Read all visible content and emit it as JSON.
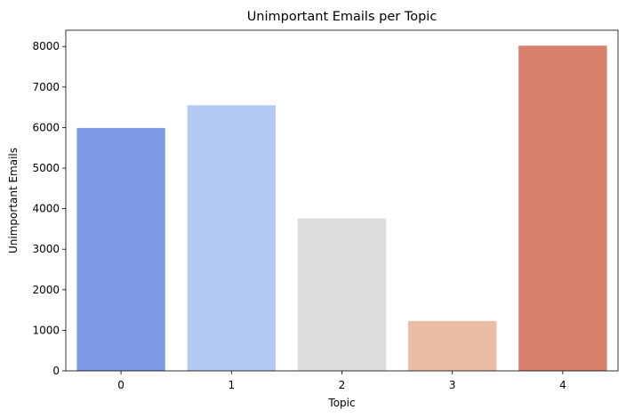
{
  "chart_data": {
    "type": "bar",
    "title": "Unimportant Emails per Topic",
    "xlabel": "Topic",
    "ylabel": "Unimportant Emails",
    "categories": [
      "0",
      "1",
      "2",
      "3",
      "4"
    ],
    "values": [
      5990,
      6550,
      3760,
      1230,
      8020
    ],
    "colors": [
      "#7f9ae4",
      "#b4c9f4",
      "#dcdcdc",
      "#ecbda5",
      "#d6806b"
    ],
    "ylim": [
      0,
      8400
    ],
    "yticks": [
      0,
      1000,
      2000,
      3000,
      4000,
      5000,
      6000,
      7000,
      8000
    ],
    "grid": false
  }
}
